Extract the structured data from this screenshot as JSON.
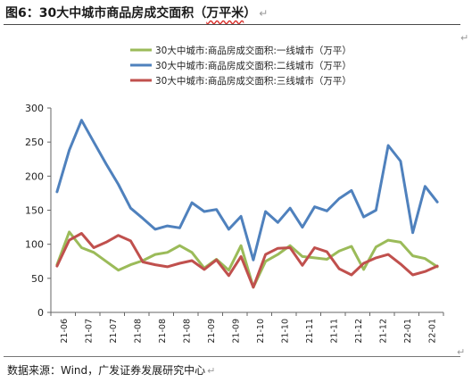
{
  "header": {
    "title": "图6：30大中城市商品房成交面积（",
    "title_unit": "万平米",
    "title_end": "）"
  },
  "footer": {
    "source": "数据来源：Wind，广发证券发展研究中心"
  },
  "chart_data": {
    "type": "line",
    "title": "",
    "xlabel": "",
    "ylabel": "",
    "ylim": [
      0,
      300
    ],
    "yticks": [
      0,
      50,
      100,
      150,
      200,
      250,
      300
    ],
    "grid": false,
    "legend_position": "top-center",
    "x_tick_labels": [
      "21-06",
      "21-07",
      "21-07",
      "21-08",
      "21-08",
      "21-08",
      "21-09",
      "21-09",
      "21-10",
      "21-10",
      "21-11",
      "21-11",
      "21-12",
      "21-12",
      "22-01",
      "22-01"
    ],
    "series": [
      {
        "name": "30大中城市:商品房成交面积:一线城市（万平）",
        "color": "#9bbb59",
        "values": [
          70,
          118,
          95,
          88,
          75,
          62,
          70,
          76,
          85,
          88,
          98,
          88,
          65,
          78,
          62,
          98,
          37,
          75,
          85,
          98,
          82,
          80,
          78,
          90,
          97,
          63,
          96,
          106,
          103,
          83,
          79,
          67
        ]
      },
      {
        "name": "30大中城市:商品房成交面积:二线城市（万平）",
        "color": "#4f81bd",
        "values": [
          177,
          238,
          282,
          250,
          218,
          188,
          153,
          138,
          122,
          127,
          124,
          161,
          148,
          151,
          122,
          141,
          77,
          148,
          132,
          153,
          125,
          155,
          149,
          167,
          179,
          140,
          150,
          245,
          222,
          117,
          185,
          162
        ]
      },
      {
        "name": "30大中城市:商品房成交面积:三线城市（万平）",
        "color": "#c0504d",
        "values": [
          68,
          106,
          116,
          95,
          103,
          113,
          105,
          74,
          70,
          67,
          72,
          76,
          63,
          77,
          54,
          82,
          37,
          85,
          94,
          95,
          69,
          95,
          89,
          64,
          55,
          72,
          80,
          85,
          71,
          55,
          60,
          68
        ]
      }
    ]
  }
}
